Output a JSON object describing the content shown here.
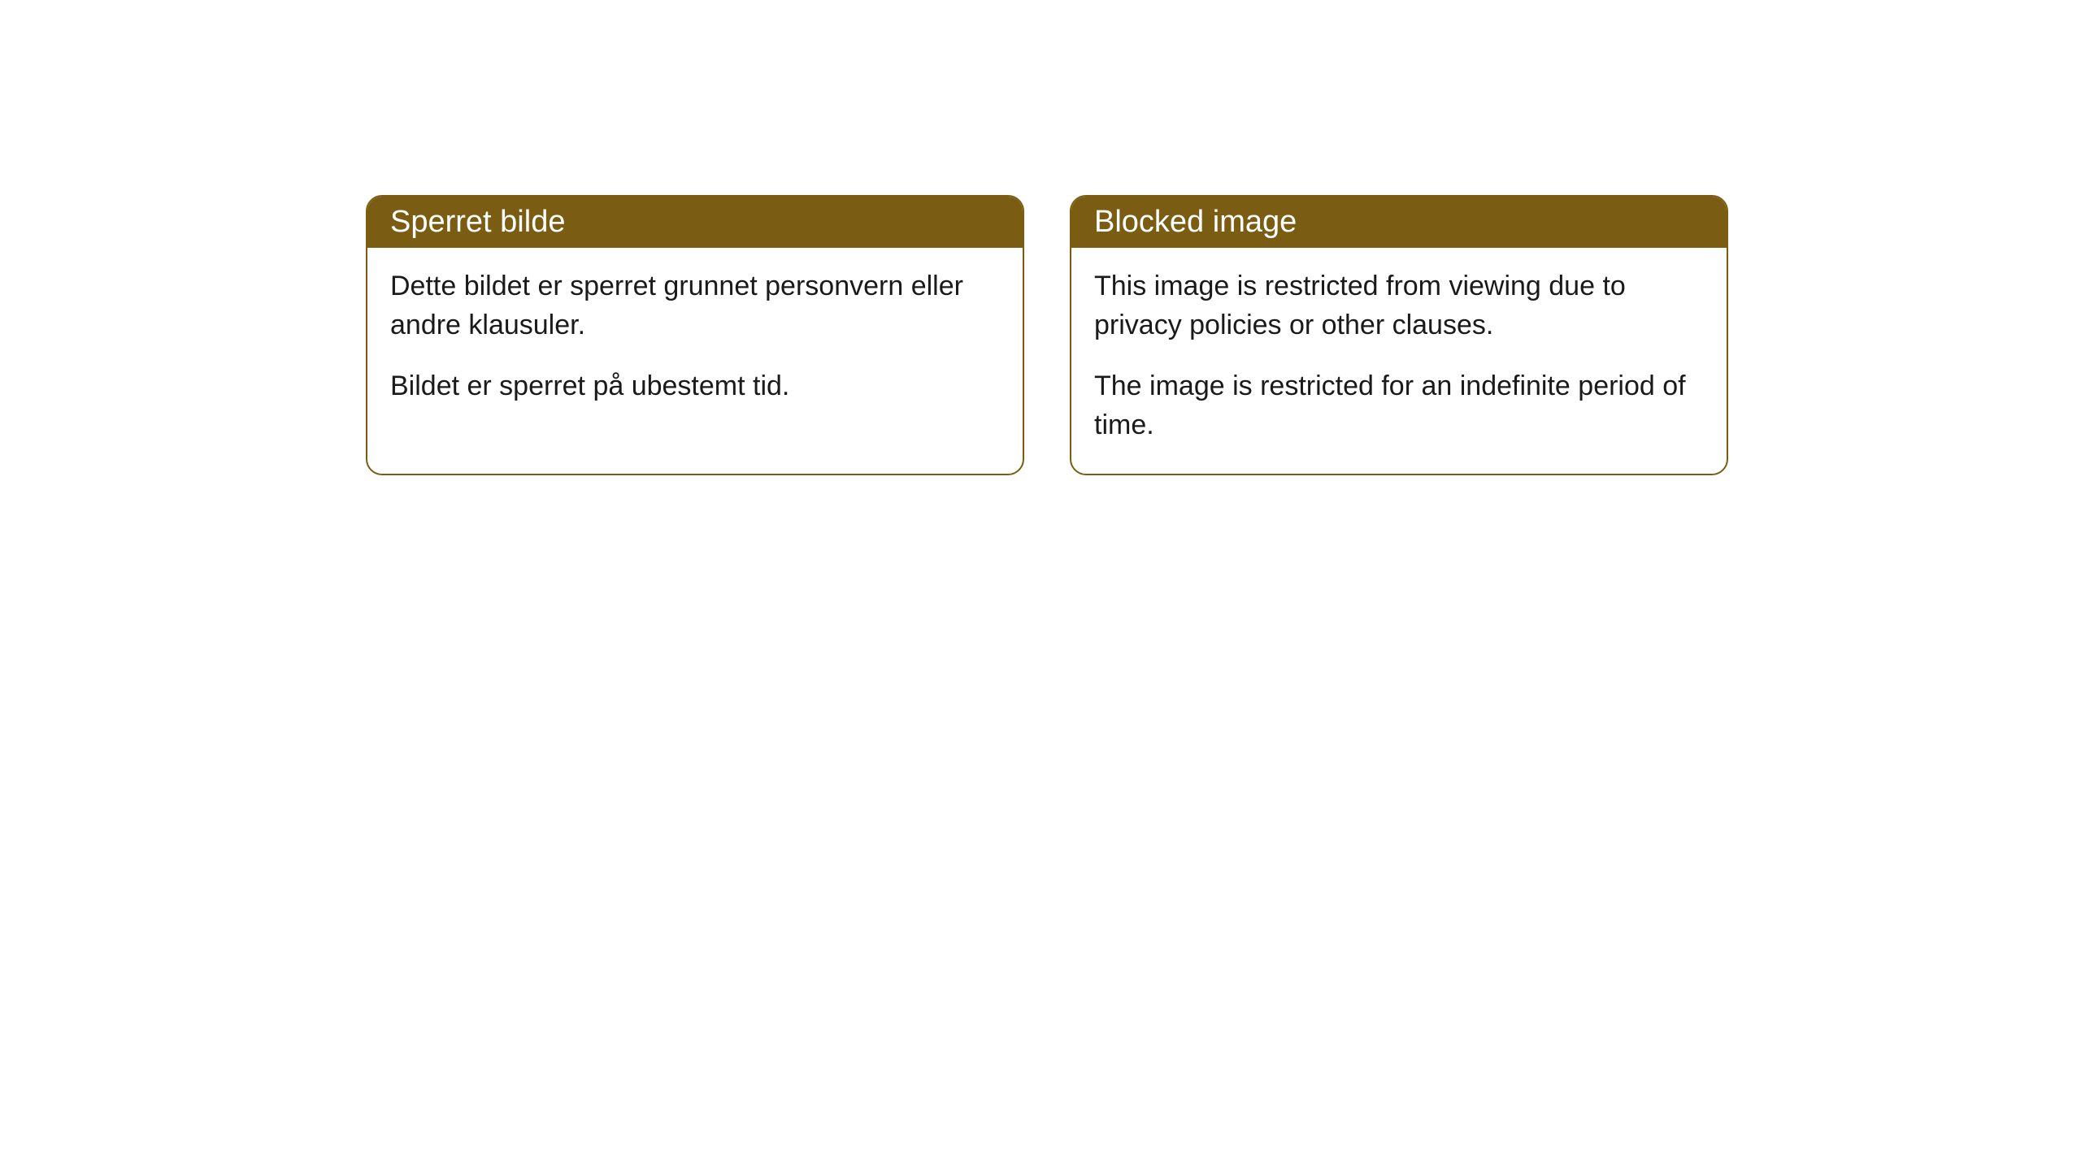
{
  "cards": [
    {
      "title": "Sperret bilde",
      "paragraph1": "Dette bildet er sperret grunnet personvern eller andre klausuler.",
      "paragraph2": "Bildet er sperret på ubestemt tid."
    },
    {
      "title": "Blocked image",
      "paragraph1": "This image is restricted from viewing due to privacy policies or other clauses.",
      "paragraph2": "The image is restricted for an indefinite period of time."
    }
  ],
  "style": {
    "header_background": "#7a5d12",
    "header_text_color": "#ffffff",
    "border_color": "#7a5d12",
    "body_text_color": "#1a1a1a",
    "card_background": "#ffffff",
    "border_radius": 20,
    "header_fontsize": 38,
    "body_fontsize": 34
  }
}
